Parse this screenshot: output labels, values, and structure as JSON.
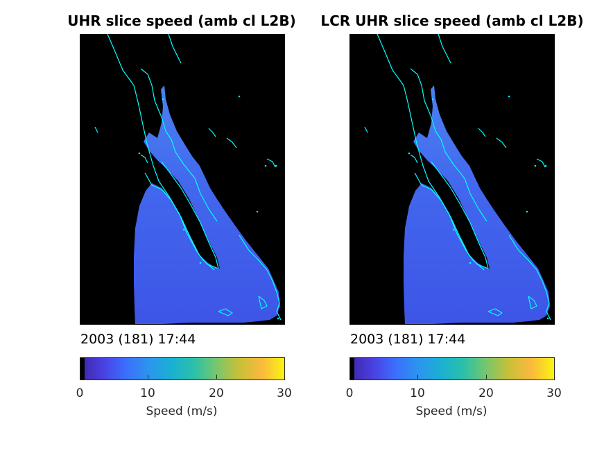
{
  "panels": [
    {
      "title": "UHR slice speed (amb cl L2B)",
      "timestamp": "2003 (181) 17:44",
      "colorbar": {
        "ticks": [
          "0",
          "10",
          "20",
          "30"
        ],
        "label": "Speed (m/s)"
      }
    },
    {
      "title": "LCR UHR slice speed (amb cl L2B)",
      "timestamp": "2003 (181) 17:44",
      "colorbar": {
        "ticks": [
          "0",
          "10",
          "20",
          "30"
        ],
        "label": "Speed (m/s)"
      }
    }
  ],
  "chart_data": [
    {
      "type": "heatmap",
      "title": "UHR slice speed (amb cl L2B)",
      "annotation": "2003 (181) 17:44",
      "colorbar_label": "Speed (m/s)",
      "colorbar_range": [
        0,
        30
      ],
      "colorbar_ticks": [
        0,
        10,
        20,
        30
      ],
      "colormap": "parula",
      "estimated_speed_m_s": 5,
      "background_color": "#000000",
      "coastline_color": "#00ffff"
    },
    {
      "type": "heatmap",
      "title": "LCR UHR slice speed (amb cl L2B)",
      "annotation": "2003 (181) 17:44",
      "colorbar_label": "Speed (m/s)",
      "colorbar_range": [
        0,
        30
      ],
      "colorbar_ticks": [
        0,
        10,
        20,
        30
      ],
      "colormap": "parula",
      "estimated_speed_m_s": 5,
      "background_color": "#000000",
      "coastline_color": "#00ffff"
    }
  ],
  "colors": {
    "parula_stops": [
      "#3e26a8",
      "#4a3fe2",
      "#3b6ffd",
      "#2c94ef",
      "#1ab0d3",
      "#2bc0a9",
      "#77c66d",
      "#c8c038",
      "#fbb93c",
      "#f9f313"
    ],
    "ocean": "#3d55e6",
    "ocean_light": "#4a82f0",
    "coastline": "#00ffff",
    "background": "#000000"
  }
}
